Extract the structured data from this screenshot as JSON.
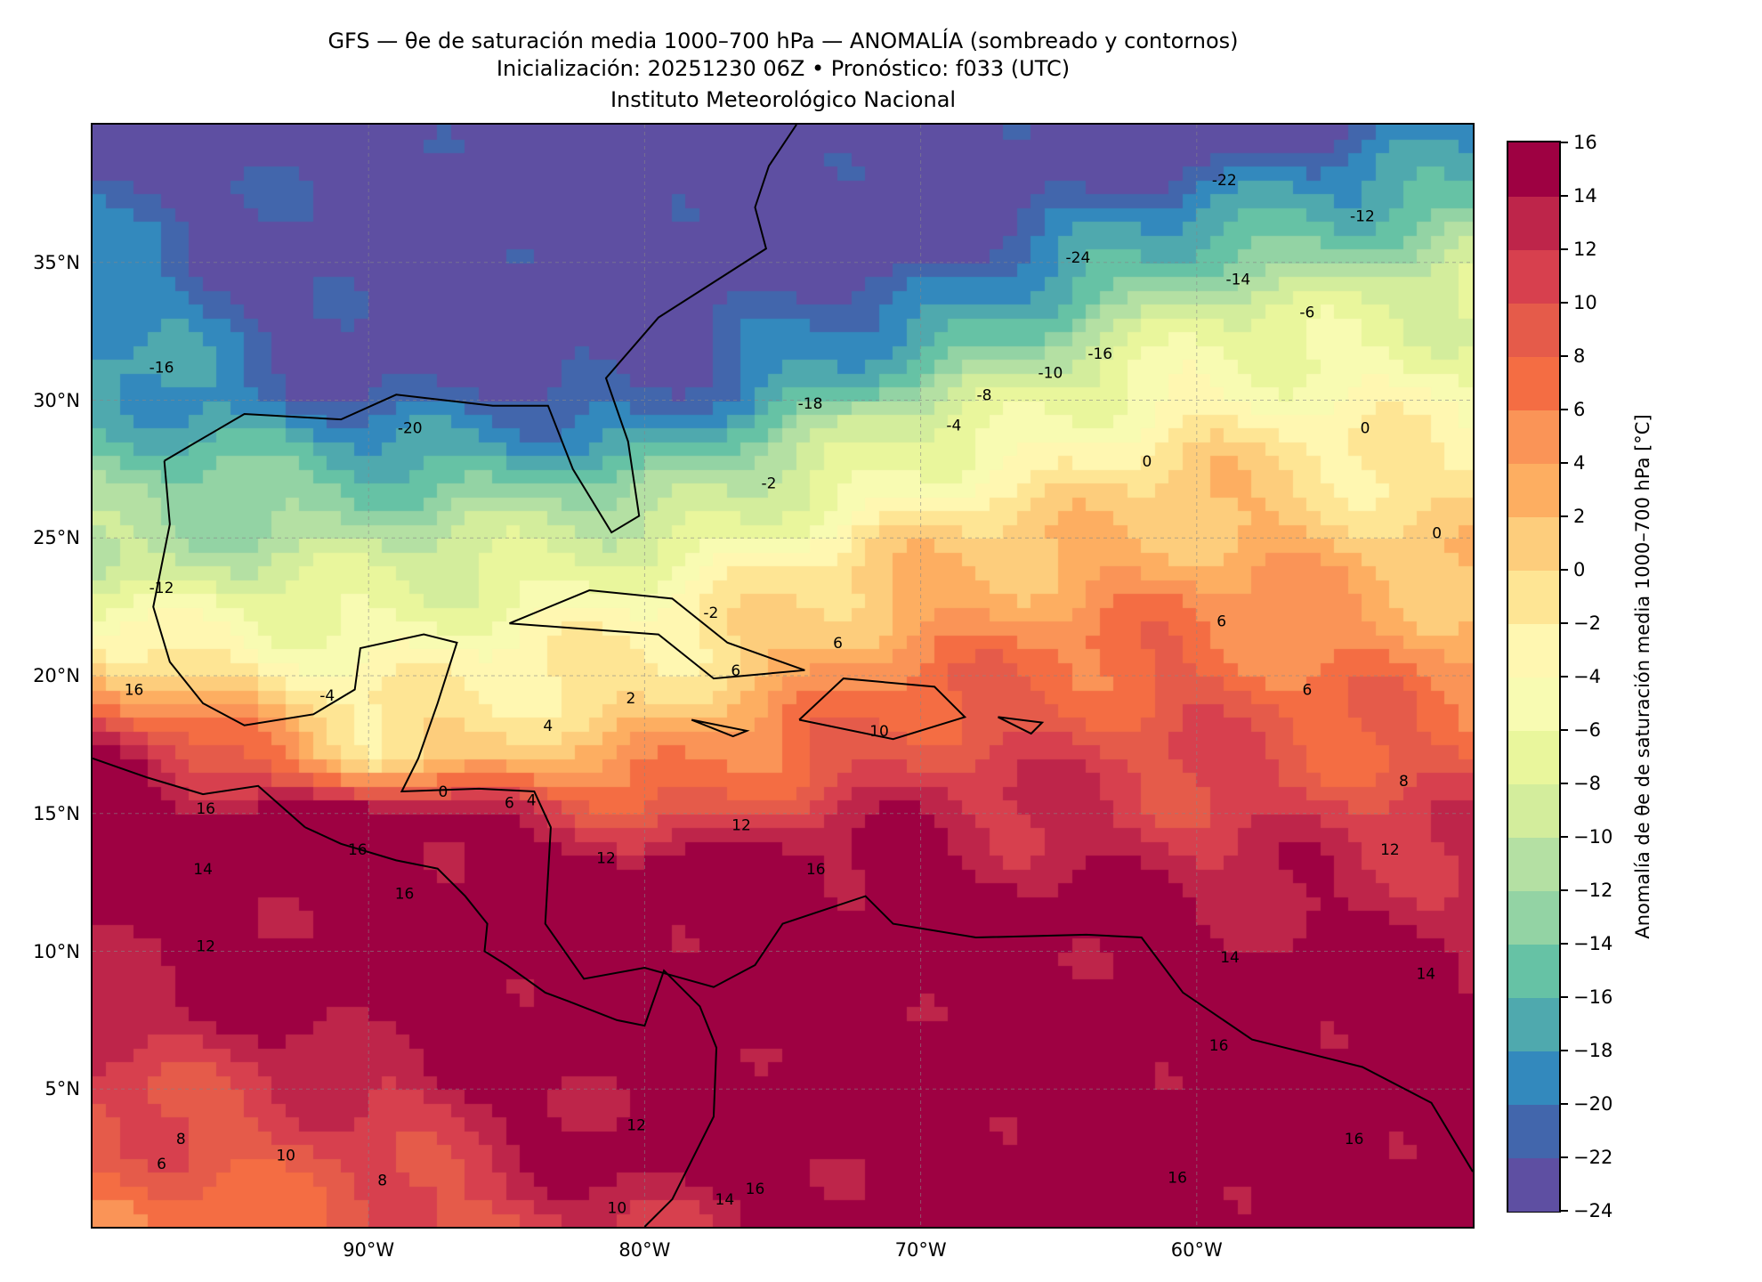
{
  "title": {
    "line1": "GFS — θe de saturación media 1000–700 hPa — ANOMALÍA (sombreado y contornos)",
    "line2": "Inicialización: 20251230 06Z   •   Pronóstico: f033 (UTC)",
    "line3": "Instituto Meteorológico Nacional"
  },
  "chart_data": {
    "type": "heatmap",
    "title": "GFS — θe de saturación media 1000–700 hPa — ANOMALÍA (sombreado y contornos)",
    "xlabel": "",
    "ylabel": "",
    "xlim": [
      -100,
      -50
    ],
    "ylim": [
      0,
      40
    ],
    "grid": true,
    "x_ticks": [
      {
        "value": -90,
        "label": "90°W"
      },
      {
        "value": -80,
        "label": "80°W"
      },
      {
        "value": -70,
        "label": "70°W"
      },
      {
        "value": -60,
        "label": "60°W"
      }
    ],
    "y_ticks": [
      {
        "value": 5,
        "label": "5°N"
      },
      {
        "value": 10,
        "label": "10°N"
      },
      {
        "value": 15,
        "label": "15°N"
      },
      {
        "value": 20,
        "label": "20°N"
      },
      {
        "value": 25,
        "label": "25°N"
      },
      {
        "value": 30,
        "label": "30°N"
      },
      {
        "value": 35,
        "label": "35°N"
      }
    ],
    "colorbar": {
      "label": "Anomalía de θe de saturación media 1000–700 hPa [°C]",
      "levels": [
        -24,
        -22,
        -20,
        -18,
        -16,
        -14,
        -12,
        -10,
        -8,
        -6,
        -4,
        -2,
        0,
        2,
        4,
        6,
        8,
        10,
        12,
        14,
        16
      ],
      "tick_labels": [
        "−24",
        "−22",
        "−20",
        "−18",
        "−16",
        "−14",
        "−12",
        "−10",
        "−8",
        "−6",
        "−4",
        "−2",
        "0",
        "2",
        "4",
        "6",
        "8",
        "10",
        "12",
        "14",
        "16"
      ],
      "colors": [
        "#5e4fa2",
        "#4266ac",
        "#3389bd",
        "#4fa9ae",
        "#66c2a5",
        "#93d3a4",
        "#b4e0a3",
        "#d3ed9c",
        "#e9f69c",
        "#f8fbb2",
        "#fff7b1",
        "#fee594",
        "#fdcd7c",
        "#fdae61",
        "#fa9457",
        "#f46d43",
        "#e55b4a",
        "#d7404e",
        "#be254a",
        "#9e0142"
      ]
    },
    "field_profiles": [
      {
        "lon": -100,
        "points": [
          [
            0,
            6
          ],
          [
            5,
            10
          ],
          [
            9,
            14
          ],
          [
            14,
            16
          ],
          [
            17,
            16
          ],
          [
            19,
            8
          ],
          [
            21,
            -2
          ],
          [
            24,
            -10
          ],
          [
            30,
            -16
          ],
          [
            36,
            -20
          ],
          [
            40,
            -24
          ]
        ]
      },
      {
        "lon": -90,
        "points": [
          [
            0,
            8
          ],
          [
            5,
            12
          ],
          [
            8,
            16
          ],
          [
            15,
            16
          ],
          [
            16,
            8
          ],
          [
            17,
            0
          ],
          [
            22,
            -6
          ],
          [
            27,
            -14
          ],
          [
            30,
            -22
          ],
          [
            33,
            -24
          ],
          [
            40,
            -24
          ]
        ]
      },
      {
        "lon": -80,
        "points": [
          [
            0,
            12
          ],
          [
            3,
            16
          ],
          [
            13,
            16
          ],
          [
            16,
            6
          ],
          [
            19,
            0
          ],
          [
            24,
            -6
          ],
          [
            28,
            -16
          ],
          [
            31,
            -24
          ],
          [
            40,
            -24
          ]
        ]
      },
      {
        "lon": -70,
        "points": [
          [
            0,
            16
          ],
          [
            12,
            16
          ],
          [
            16,
            12
          ],
          [
            19,
            8
          ],
          [
            25,
            0
          ],
          [
            29,
            -8
          ],
          [
            32,
            -16
          ],
          [
            35,
            -24
          ],
          [
            40,
            -24
          ]
        ]
      },
      {
        "lon": -60,
        "points": [
          [
            0,
            16
          ],
          [
            9,
            16
          ],
          [
            14,
            12
          ],
          [
            20,
            8
          ],
          [
            28,
            0
          ],
          [
            33,
            -8
          ],
          [
            36,
            -16
          ],
          [
            39,
            -24
          ],
          [
            40,
            -24
          ]
        ]
      },
      {
        "lon": -50,
        "points": [
          [
            0,
            16
          ],
          [
            8,
            16
          ],
          [
            14,
            12
          ],
          [
            17,
            8
          ],
          [
            25,
            0
          ],
          [
            34,
            -8
          ],
          [
            38,
            -16
          ],
          [
            40,
            -20
          ]
        ]
      }
    ],
    "contour_labels": [
      {
        "lon": -97.5,
        "lat": 31.0,
        "text": "-16"
      },
      {
        "lon": -88.5,
        "lat": 28.8,
        "text": "-20"
      },
      {
        "lon": -74.0,
        "lat": 29.7,
        "text": "-18"
      },
      {
        "lon": -59.0,
        "lat": 37.8,
        "text": "-22"
      },
      {
        "lon": -54.0,
        "lat": 36.5,
        "text": "-12"
      },
      {
        "lon": -64.3,
        "lat": 35.0,
        "text": "-24"
      },
      {
        "lon": -58.5,
        "lat": 34.2,
        "text": "-14"
      },
      {
        "lon": -56.0,
        "lat": 33.0,
        "text": "-6"
      },
      {
        "lon": -63.5,
        "lat": 31.5,
        "text": "-16"
      },
      {
        "lon": -65.3,
        "lat": 30.8,
        "text": "-10"
      },
      {
        "lon": -67.7,
        "lat": 30.0,
        "text": "-8"
      },
      {
        "lon": -68.8,
        "lat": 28.9,
        "text": "-4"
      },
      {
        "lon": -75.5,
        "lat": 26.8,
        "text": "-2"
      },
      {
        "lon": -91.5,
        "lat": 19.1,
        "text": "-4"
      },
      {
        "lon": -97.5,
        "lat": 23.0,
        "text": "-12"
      },
      {
        "lon": -77.6,
        "lat": 22.1,
        "text": "-2"
      },
      {
        "lon": -73.0,
        "lat": 21.0,
        "text": "6"
      },
      {
        "lon": -76.7,
        "lat": 20.0,
        "text": "6"
      },
      {
        "lon": -80.5,
        "lat": 19.0,
        "text": "2"
      },
      {
        "lon": -83.5,
        "lat": 18.0,
        "text": "4"
      },
      {
        "lon": -87.3,
        "lat": 15.6,
        "text": "0"
      },
      {
        "lon": -84.9,
        "lat": 15.2,
        "text": "6"
      },
      {
        "lon": -84.1,
        "lat": 15.3,
        "text": "4"
      },
      {
        "lon": -71.5,
        "lat": 17.8,
        "text": "10"
      },
      {
        "lon": -76.5,
        "lat": 14.4,
        "text": "12"
      },
      {
        "lon": -81.4,
        "lat": 13.2,
        "text": "12"
      },
      {
        "lon": -73.8,
        "lat": 12.8,
        "text": "16"
      },
      {
        "lon": -95.9,
        "lat": 15.0,
        "text": "16"
      },
      {
        "lon": -96.0,
        "lat": 12.8,
        "text": "14"
      },
      {
        "lon": -90.4,
        "lat": 13.5,
        "text": "16"
      },
      {
        "lon": -95.9,
        "lat": 10.0,
        "text": "12"
      },
      {
        "lon": -88.7,
        "lat": 11.9,
        "text": "16"
      },
      {
        "lon": -59.1,
        "lat": 21.8,
        "text": "6"
      },
      {
        "lon": -56.0,
        "lat": 19.3,
        "text": "6"
      },
      {
        "lon": -51.3,
        "lat": 25.0,
        "text": "0"
      },
      {
        "lon": -61.8,
        "lat": 27.6,
        "text": "0"
      },
      {
        "lon": -53.9,
        "lat": 28.8,
        "text": "0"
      },
      {
        "lon": -52.5,
        "lat": 16.0,
        "text": "8"
      },
      {
        "lon": -53.0,
        "lat": 13.5,
        "text": "12"
      },
      {
        "lon": -58.8,
        "lat": 9.6,
        "text": "14"
      },
      {
        "lon": -51.7,
        "lat": 9.0,
        "text": "14"
      },
      {
        "lon": -59.2,
        "lat": 6.4,
        "text": "16"
      },
      {
        "lon": -54.3,
        "lat": 3.0,
        "text": "16"
      },
      {
        "lon": -60.7,
        "lat": 1.6,
        "text": "16"
      },
      {
        "lon": -80.3,
        "lat": 3.5,
        "text": "12"
      },
      {
        "lon": -93.0,
        "lat": 2.4,
        "text": "10"
      },
      {
        "lon": -89.5,
        "lat": 1.5,
        "text": "8"
      },
      {
        "lon": -96.8,
        "lat": 3.0,
        "text": "8"
      },
      {
        "lon": -97.5,
        "lat": 2.1,
        "text": "6"
      },
      {
        "lon": -81.0,
        "lat": 0.5,
        "text": "10"
      },
      {
        "lon": -77.1,
        "lat": 0.8,
        "text": "14"
      },
      {
        "lon": -76.0,
        "lat": 1.2,
        "text": "16"
      },
      {
        "lon": -98.5,
        "lat": 19.3,
        "text": "16"
      }
    ]
  }
}
